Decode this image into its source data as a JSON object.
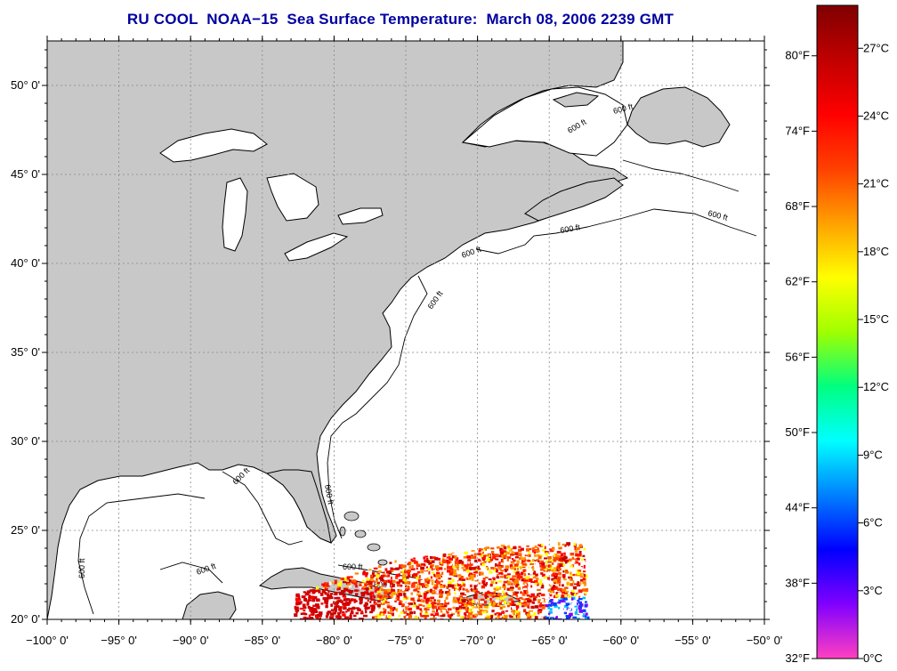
{
  "title": "RU COOL  NOAA−15  Sea Surface Temperature:  March 08, 2006 2239 GMT",
  "map": {
    "lon_range": [
      -100,
      -50
    ],
    "lat_range": [
      20,
      52.5
    ],
    "lat_ticks": [
      {
        "value": 50,
        "label": "50° 0'"
      },
      {
        "value": 45,
        "label": "45° 0'"
      },
      {
        "value": 40,
        "label": "40° 0'"
      },
      {
        "value": 35,
        "label": "35° 0'"
      },
      {
        "value": 30,
        "label": "30° 0'"
      },
      {
        "value": 25,
        "label": "25° 0'"
      },
      {
        "value": 20,
        "label": "20° 0'"
      }
    ],
    "lon_ticks": [
      {
        "value": -100,
        "label": "−100° 0'"
      },
      {
        "value": -95,
        "label": "−95° 0'"
      },
      {
        "value": -90,
        "label": "−90° 0'"
      },
      {
        "value": -85,
        "label": "−85° 0'"
      },
      {
        "value": -80,
        "label": "−80° 0'"
      },
      {
        "value": -75,
        "label": "−75° 0'"
      },
      {
        "value": -70,
        "label": "−70° 0'"
      },
      {
        "value": -65,
        "label": "−65° 0'"
      },
      {
        "value": -60,
        "label": "−60° 0'"
      },
      {
        "value": -55,
        "label": "−55° 0'"
      },
      {
        "value": -50,
        "label": "−50° 0'"
      }
    ],
    "contour_label": "600 ft",
    "land_color": "#c8c8c8",
    "water_color": "#ffffff",
    "grid": "dotted"
  },
  "colorbar": {
    "labels_f": [
      "80°F",
      "74°F",
      "68°F",
      "62°F",
      "56°F",
      "50°F",
      "44°F",
      "38°F",
      "32°F"
    ],
    "labels_c": [
      "27°C",
      "24°C",
      "21°C",
      "18°C",
      "15°C",
      "12°C",
      "9°C",
      "6°C",
      "3°C",
      "0°C"
    ],
    "f_values": [
      80,
      74,
      68,
      62,
      56,
      50,
      44,
      38,
      32
    ],
    "c_values": [
      27,
      24,
      21,
      18,
      15,
      12,
      9,
      6,
      3,
      0
    ],
    "range_c": [
      0,
      28.9
    ],
    "colors": [
      "#ff40c0",
      "#8000ff",
      "#0000ff",
      "#0080ff",
      "#00ffff",
      "#00ff80",
      "#a0ff00",
      "#ffff00",
      "#ffa000",
      "#ff4000",
      "#ff0000",
      "#c00000",
      "#800000"
    ]
  }
}
